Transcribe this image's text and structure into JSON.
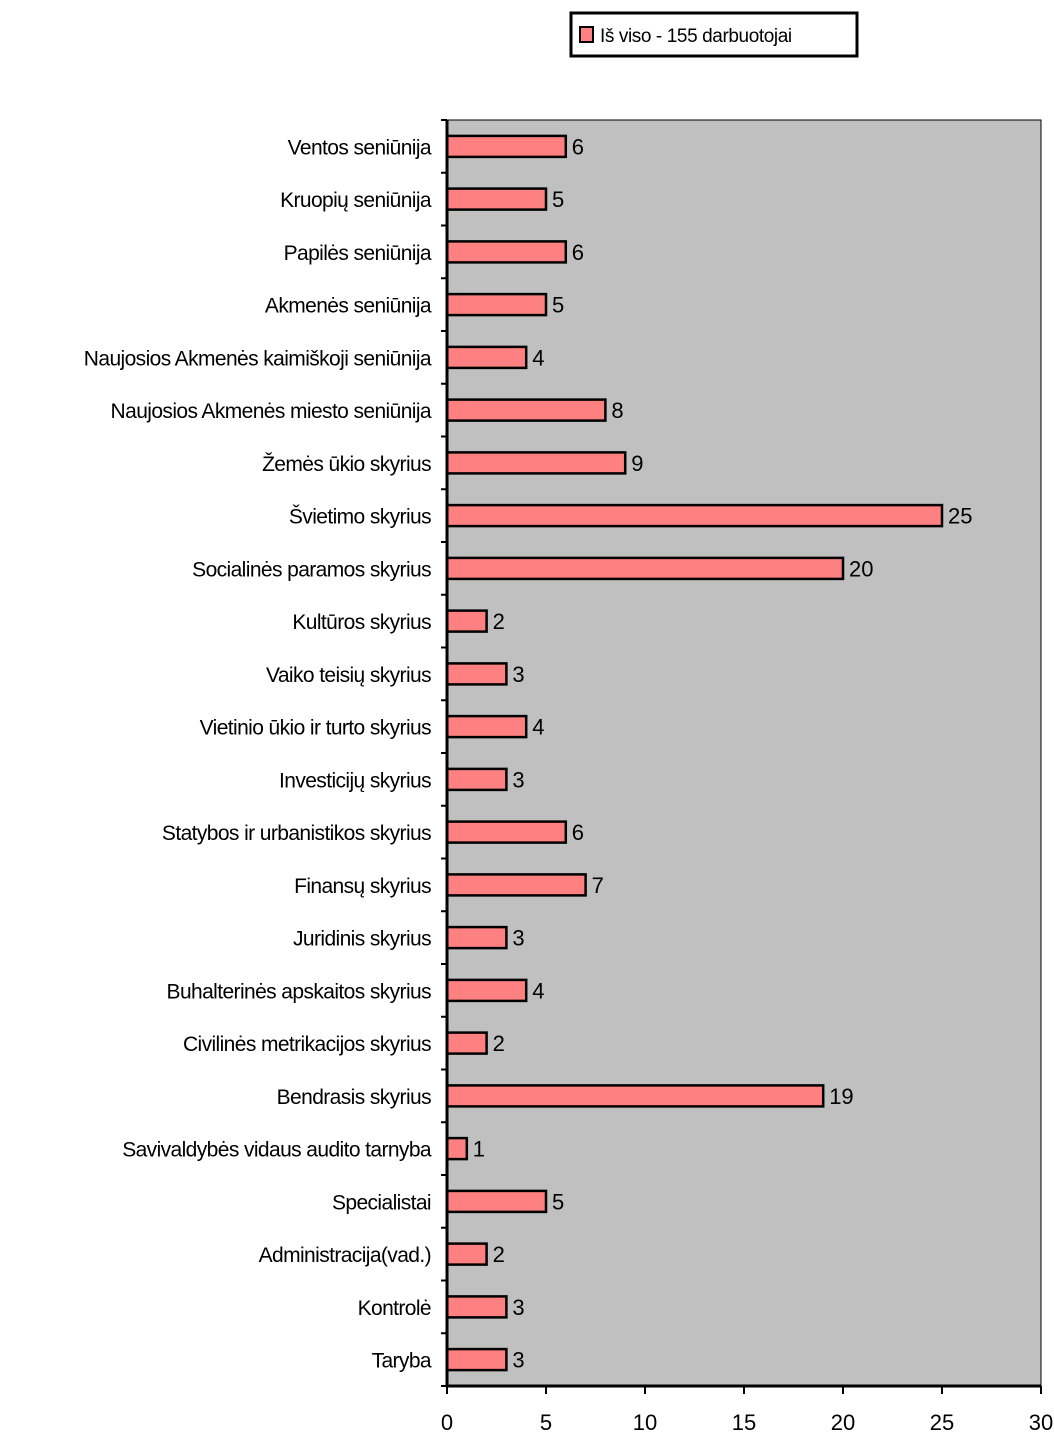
{
  "chart_data": {
    "type": "bar",
    "orientation": "horizontal",
    "categories": [
      "Ventos seniūnija",
      "Kruopių seniūnija",
      "Papilės seniūnija",
      "Akmenės seniūnija",
      "Naujosios Akmenės kaimiškoji seniūnija",
      "Naujosios Akmenės miesto seniūnija",
      "Žemės ūkio skyrius",
      "Švietimo skyrius",
      "Socialinės paramos skyrius",
      "Kultūros skyrius",
      "Vaiko teisių skyrius",
      "Vietinio ūkio ir turto skyrius",
      "Investicijų skyrius",
      "Statybos ir urbanistikos skyrius",
      "Finansų skyrius",
      "Juridinis skyrius",
      "Buhalterinės apskaitos skyrius",
      "Civilinės metrikacijos skyrius",
      "Bendrasis skyrius",
      "Savivaldybės vidaus audito tarnyba",
      "Specialistai",
      "Administracija(vad.)",
      "Kontrolė",
      "Taryba"
    ],
    "series": [
      {
        "name": "Iš viso - 155 darbuotojai",
        "values": [
          6,
          5,
          6,
          5,
          4,
          8,
          9,
          25,
          20,
          2,
          3,
          4,
          3,
          6,
          7,
          3,
          4,
          2,
          19,
          1,
          5,
          2,
          3,
          3
        ]
      }
    ],
    "xlim": [
      0,
      30
    ],
    "xticks": [
      0,
      5,
      10,
      15,
      20,
      25,
      30
    ],
    "legend_position": "top-right",
    "grid": false,
    "colors": {
      "bar": "#ff8080",
      "plot_background": "#c0c0c0",
      "border": "#000000"
    }
  }
}
